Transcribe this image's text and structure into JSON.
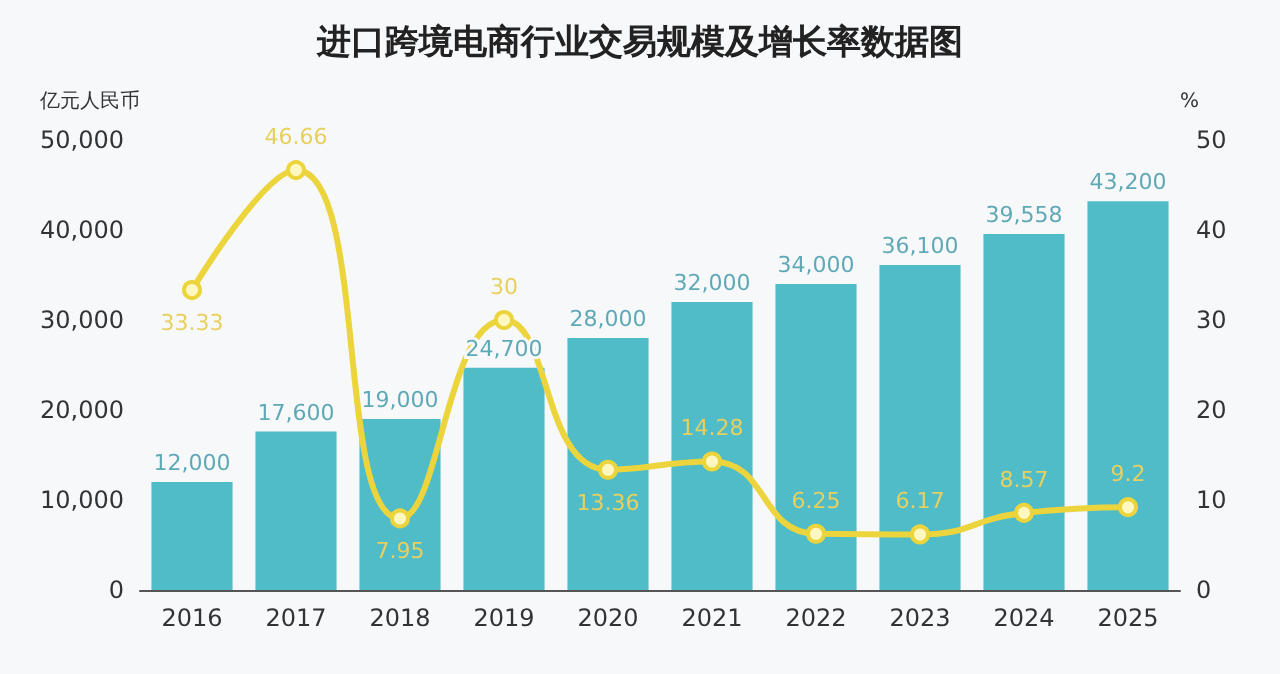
{
  "chart_data": {
    "type": "bar",
    "title": "进口跨境电商行业交易规模及增长率数据图",
    "ylabel": "亿元人民币",
    "y2label": "%",
    "categories": [
      "2016",
      "2017",
      "2018",
      "2019",
      "2020",
      "2021",
      "2022",
      "2023",
      "2024",
      "2025"
    ],
    "series": [
      {
        "color": "#4fbcc8",
        "values": [
          12000,
          17600,
          19000,
          24700,
          28000,
          32000,
          34000,
          36100,
          39558,
          43200
        ],
        "value_labels": [
          "12,000",
          "17,600",
          "19,000",
          "24,700",
          "28,000",
          "32,000",
          "34,000",
          "36,100",
          "39,558",
          "43,200"
        ]
      },
      {
        "type": "line",
        "axis": "y2",
        "color": "#ecd43c",
        "marker": "circle",
        "values": [
          33.33,
          46.66,
          7.95,
          30,
          13.36,
          14.28,
          6.25,
          6.17,
          8.57,
          9.2
        ]
      }
    ],
    "ylim": [
      0,
      50000
    ],
    "yticks": [
      0,
      {
        "value": 10000,
        "label": "10,000"
      },
      {
        "value": 20000,
        "label": "20,000"
      },
      {
        "value": 30000,
        "label": "30,000"
      },
      {
        "value": 40000,
        "label": "40,000"
      },
      {
        "value": 50000,
        "label": "50,000"
      }
    ],
    "y2lim": [
      0,
      50
    ],
    "y2ticks": [
      0,
      10,
      20,
      30,
      40,
      50
    ],
    "data_labels": true,
    "grid": false
  }
}
